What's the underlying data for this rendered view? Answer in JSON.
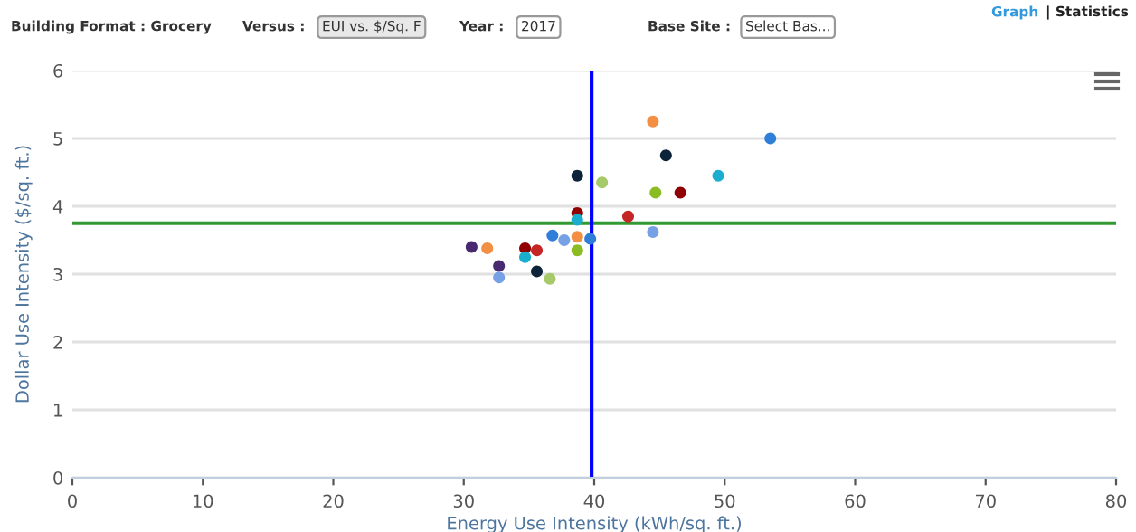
{
  "chart_data": {
    "type": "scatter",
    "xlabel": "Energy Use Intensity (kWh/sq. ft.)",
    "ylabel": "Dollar Use Intensity ($/sq. ft.)",
    "annotations": [
      "Building Format : Grocery",
      "Versus :",
      "EUI vs. $/Sq. F",
      "Year :",
      "2017",
      "Base Site :",
      "Select Bas...",
      "Graph",
      "| Statistics"
    ],
    "x": [
      44.5,
      53.5,
      45.5,
      38.7,
      40.6,
      49.5,
      44.7,
      46.6,
      38.7,
      42.6,
      38.7,
      44.5,
      30.6,
      31.8,
      36.8,
      37.7,
      38.7,
      39.7,
      34.7,
      35.6,
      34.7,
      38.7,
      32.7,
      32.7,
      35.6,
      36.6
    ],
    "values": [
      5.25,
      5.0,
      4.75,
      4.45,
      4.35,
      4.45,
      4.2,
      4.2,
      3.9,
      3.85,
      3.8,
      3.62,
      3.4,
      3.38,
      3.57,
      3.5,
      3.55,
      3.52,
      3.38,
      3.35,
      3.25,
      3.35,
      3.12,
      2.95,
      3.04,
      2.93
    ],
    "colors": [
      "#f28f43",
      "#2f7ed8",
      "#0d233a",
      "#0d233a",
      "#a6c96a",
      "#1aadce",
      "#8bbc21",
      "#910000",
      "#910000",
      "#c42525",
      "#1aadce",
      "#77a1e5",
      "#492970",
      "#f28f43",
      "#2f7ed8",
      "#77a1e5",
      "#f28f43",
      "#2f7ed8",
      "#910000",
      "#c42525",
      "#1aadce",
      "#8bbc21",
      "#492970",
      "#77a1e5",
      "#0d233a",
      "#a6c96a"
    ],
    "marker": "circle",
    "xlim": [
      0,
      80
    ],
    "xticks": [
      0,
      10,
      20,
      30,
      40,
      50,
      60,
      70,
      80
    ],
    "ylim": [
      0,
      6
    ],
    "yticks": [
      0,
      1,
      2,
      3,
      4,
      5,
      6
    ],
    "grid": "y",
    "ref_lines": [
      {
        "axis": "y",
        "value": 3.75,
        "color": "#339933"
      },
      {
        "axis": "x",
        "value": 39.8,
        "color": "#0000ff"
      }
    ]
  }
}
